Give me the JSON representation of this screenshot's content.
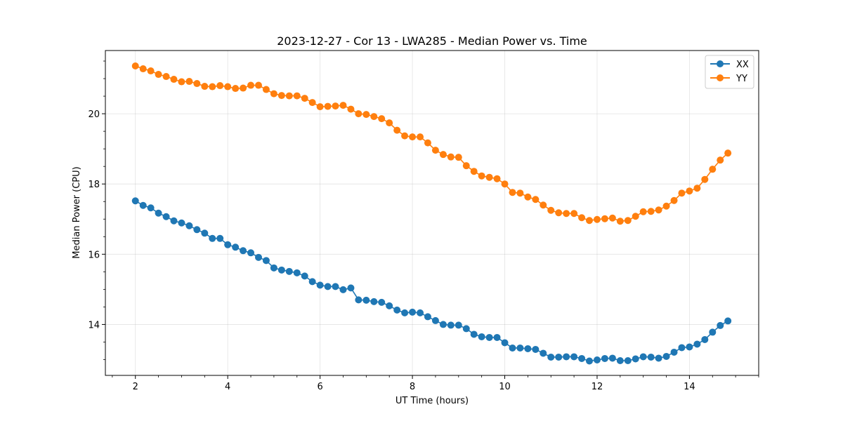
{
  "chart_data": {
    "type": "line",
    "title": "2023-12-27 - Cor 13 - LWA285 - Median Power vs. Time",
    "xlabel": "UT Time (hours)",
    "ylabel": "Median Power (CPU)",
    "xlim": [
      1.35,
      15.5
    ],
    "ylim": [
      12.55,
      21.8
    ],
    "xticks": [
      2,
      4,
      6,
      8,
      10,
      12,
      14
    ],
    "xtick_labels": [
      "2",
      "4",
      "6",
      "8",
      "10",
      "12",
      "14"
    ],
    "yticks": [
      14,
      16,
      18,
      20
    ],
    "ytick_labels": [
      "14",
      "16",
      "18",
      "20"
    ],
    "grid": true,
    "legend_position": "top-right",
    "x": [
      2.0,
      2.167,
      2.333,
      2.5,
      2.667,
      2.833,
      3.0,
      3.167,
      3.333,
      3.5,
      3.667,
      3.833,
      4.0,
      4.167,
      4.333,
      4.5,
      4.667,
      4.833,
      5.0,
      5.167,
      5.333,
      5.5,
      5.667,
      5.833,
      6.0,
      6.167,
      6.333,
      6.5,
      6.667,
      6.833,
      7.0,
      7.167,
      7.333,
      7.5,
      7.667,
      7.833,
      8.0,
      8.167,
      8.333,
      8.5,
      8.667,
      8.833,
      9.0,
      9.167,
      9.333,
      9.5,
      9.667,
      9.833,
      10.0,
      10.167,
      10.333,
      10.5,
      10.667,
      10.833,
      11.0,
      11.167,
      11.333,
      11.5,
      11.667,
      11.833,
      12.0,
      12.167,
      12.333,
      12.5,
      12.667,
      12.833,
      13.0,
      13.167,
      13.333,
      13.5,
      13.667,
      13.833,
      14.0,
      14.167,
      14.333,
      14.5,
      14.667,
      14.833
    ],
    "series": [
      {
        "name": "XX",
        "color": "#1f77b4",
        "values": [
          17.52,
          17.39,
          17.32,
          17.17,
          17.07,
          16.95,
          16.89,
          16.81,
          16.7,
          16.6,
          16.45,
          16.45,
          16.27,
          16.2,
          16.1,
          16.04,
          15.91,
          15.82,
          15.61,
          15.55,
          15.51,
          15.47,
          15.38,
          15.22,
          15.12,
          15.08,
          15.08,
          14.99,
          15.04,
          14.7,
          14.69,
          14.65,
          14.63,
          14.53,
          14.41,
          14.33,
          14.35,
          14.33,
          14.22,
          14.11,
          14.0,
          13.98,
          13.98,
          13.88,
          13.72,
          13.65,
          13.63,
          13.63,
          13.48,
          13.33,
          13.33,
          13.31,
          13.29,
          13.18,
          13.07,
          13.07,
          13.08,
          13.08,
          13.03,
          12.96,
          12.99,
          13.03,
          13.04,
          12.97,
          12.97,
          13.02,
          13.08,
          13.07,
          13.04,
          13.09,
          13.21,
          13.34,
          13.36,
          13.44,
          13.57,
          13.78,
          13.97,
          14.1
        ]
      },
      {
        "name": "YY",
        "color": "#ff7f0e",
        "values": [
          21.36,
          21.28,
          21.22,
          21.12,
          21.06,
          20.98,
          20.91,
          20.92,
          20.86,
          20.78,
          20.77,
          20.8,
          20.77,
          20.72,
          20.73,
          20.81,
          20.81,
          20.69,
          20.57,
          20.52,
          20.51,
          20.51,
          20.44,
          20.32,
          20.2,
          20.21,
          20.22,
          20.24,
          20.13,
          20.0,
          19.98,
          19.92,
          19.86,
          19.74,
          19.53,
          19.37,
          19.34,
          19.34,
          19.17,
          18.96,
          18.84,
          18.77,
          18.76,
          18.52,
          18.36,
          18.23,
          18.19,
          18.15,
          18.0,
          17.76,
          17.74,
          17.63,
          17.56,
          17.4,
          17.25,
          17.18,
          17.16,
          17.16,
          17.04,
          16.96,
          16.99,
          17.01,
          17.03,
          16.94,
          16.96,
          17.08,
          17.21,
          17.22,
          17.26,
          17.37,
          17.53,
          17.74,
          17.8,
          17.88,
          18.13,
          18.42,
          18.68,
          18.88
        ]
      }
    ]
  }
}
